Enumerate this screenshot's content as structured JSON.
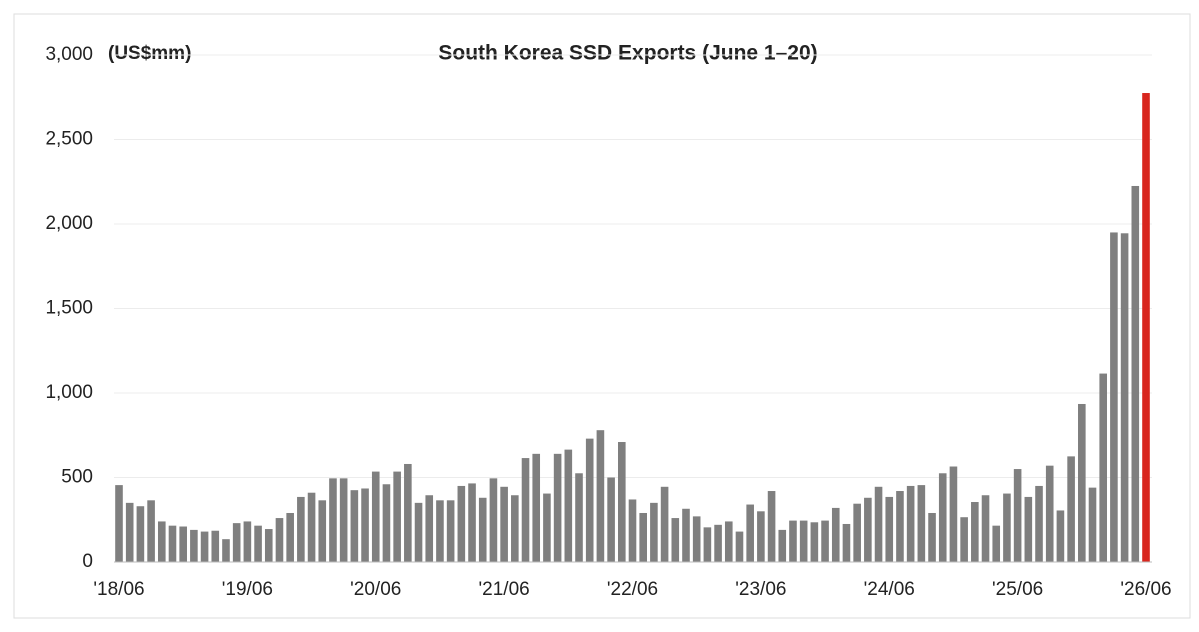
{
  "chart_data": {
    "type": "bar",
    "title": "South Korea SSD Exports (June 1–20)",
    "unit_label": "(US$mm)",
    "categories": [
      "'18/06",
      null,
      null,
      null,
      null,
      null,
      null,
      null,
      null,
      null,
      null,
      null,
      "'19/06",
      null,
      null,
      null,
      null,
      null,
      null,
      null,
      null,
      null,
      null,
      null,
      "'20/06",
      null,
      null,
      null,
      null,
      null,
      null,
      null,
      null,
      null,
      null,
      null,
      "'21/06",
      null,
      null,
      null,
      null,
      null,
      null,
      null,
      null,
      null,
      null,
      null,
      "'22/06",
      null,
      null,
      null,
      null,
      null,
      null,
      null,
      null,
      null,
      null,
      null,
      "'23/06",
      null,
      null,
      null,
      null,
      null,
      null,
      null,
      null,
      null,
      null,
      null,
      "'24/06",
      null,
      null,
      null,
      null,
      null,
      null,
      null,
      null,
      null,
      null,
      null,
      "'25/06",
      null,
      null,
      null,
      null,
      null,
      null,
      null,
      null,
      null,
      null,
      null,
      "'26/06"
    ],
    "values": [
      455,
      350,
      330,
      365,
      240,
      215,
      210,
      190,
      180,
      185,
      135,
      230,
      240,
      215,
      195,
      260,
      290,
      385,
      410,
      365,
      495,
      495,
      425,
      435,
      535,
      460,
      535,
      580,
      350,
      395,
      365,
      365,
      450,
      465,
      380,
      495,
      445,
      395,
      615,
      640,
      405,
      640,
      665,
      525,
      730,
      780,
      500,
      710,
      370,
      290,
      350,
      445,
      260,
      315,
      270,
      205,
      220,
      240,
      180,
      340,
      300,
      420,
      190,
      245,
      245,
      235,
      245,
      320,
      225,
      345,
      380,
      445,
      385,
      420,
      450,
      455,
      290,
      525,
      565,
      265,
      355,
      395,
      215,
      405,
      550,
      385,
      450,
      570,
      305,
      625,
      935,
      440,
      1115,
      1950,
      1945,
      2225,
      2775
    ],
    "color": "#7f7f7f",
    "highlight_last_color": "#d8261e",
    "ylim": [
      0,
      3000
    ],
    "yticks": [
      0,
      500,
      {
        "value": 1000,
        "label": "1,000"
      },
      {
        "value": 1500,
        "label": "1,500"
      },
      {
        "value": 2000,
        "label": "2,000"
      },
      {
        "value": 2500,
        "label": "2,500"
      },
      {
        "value": 3000,
        "label": "3,000"
      }
    ],
    "grid": true
  }
}
